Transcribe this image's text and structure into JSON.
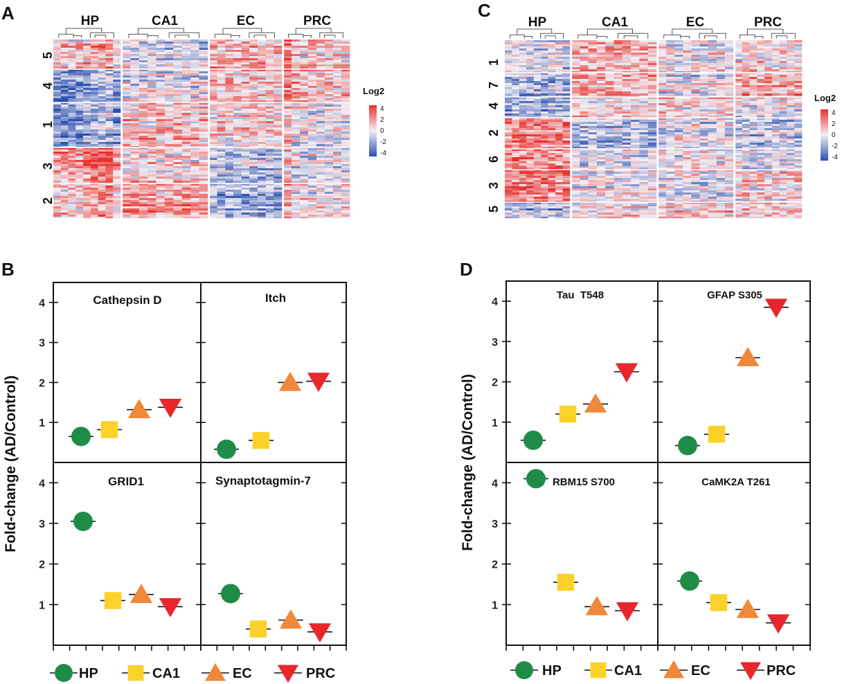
{
  "colors": {
    "HP": "#1e8c46",
    "CA1": "#fcd12a",
    "EC": "#f0883a",
    "PRC": "#e8262d",
    "heat_high": "#e8312d",
    "heat_mid": "#f3eef3",
    "heat_low": "#2a50b0"
  },
  "panels": {
    "A": {
      "letter": "A",
      "regions": [
        "HP",
        "CA1",
        "EC",
        "PRC"
      ],
      "clusters": [
        "5",
        "4",
        "1",
        "3",
        "2"
      ],
      "legend": {
        "title": "Log2",
        "ticks": [
          "4",
          "2",
          "0",
          "-2",
          "-4"
        ]
      }
    },
    "B": {
      "letter": "B"
    },
    "C": {
      "letter": "C",
      "regions": [
        "HP",
        "CA1",
        "EC",
        "PRC"
      ],
      "clusters": [
        "1",
        "7",
        "4",
        "2",
        "6",
        "3",
        "5"
      ],
      "legend": {
        "title": "Log2",
        "ticks": [
          "4",
          "2",
          "0",
          "-2",
          "-4"
        ]
      }
    },
    "D": {
      "letter": "D"
    }
  },
  "ylabel": "Fold-change (AD/Control)",
  "legend": [
    {
      "name": "HP",
      "shape": "circle"
    },
    {
      "name": "CA1",
      "shape": "square"
    },
    {
      "name": "EC",
      "shape": "triangle-up"
    },
    {
      "name": "PRC",
      "shape": "triangle-down"
    }
  ],
  "chart_data": [
    {
      "type": "scatter",
      "panel": "B",
      "title": "Cathepsin D",
      "categories": [
        "HP",
        "CA1",
        "EC",
        "PRC"
      ],
      "values": [
        0.65,
        0.82,
        1.32,
        1.38
      ],
      "ylim": [
        0,
        4.5
      ],
      "yticks": [
        1,
        2,
        3,
        4
      ]
    },
    {
      "type": "scatter",
      "panel": "B",
      "title": "Itch",
      "categories": [
        "HP",
        "CA1",
        "EC",
        "PRC"
      ],
      "values": [
        0.33,
        0.55,
        2.0,
        2.03
      ],
      "ylim": [
        0,
        4.5
      ],
      "yticks": [
        1,
        2,
        3,
        4
      ]
    },
    {
      "type": "scatter",
      "panel": "B",
      "title": "GRID1",
      "categories": [
        "HP",
        "CA1",
        "EC",
        "PRC"
      ],
      "values": [
        3.05,
        1.1,
        1.25,
        0.95
      ],
      "ylim": [
        0,
        4.5
      ],
      "yticks": [
        1,
        2,
        3,
        4
      ]
    },
    {
      "type": "scatter",
      "panel": "B",
      "title": "Synaptotagmin-7",
      "categories": [
        "HP",
        "CA1",
        "EC",
        "PRC"
      ],
      "values": [
        1.27,
        0.4,
        0.62,
        0.33
      ],
      "ylim": [
        0,
        4.5
      ],
      "yticks": [
        1,
        2,
        3,
        4
      ]
    },
    {
      "type": "scatter",
      "panel": "D",
      "title": "Tau  T548",
      "categories": [
        "HP",
        "CA1",
        "EC",
        "PRC"
      ],
      "values": [
        0.55,
        1.2,
        1.45,
        2.25
      ],
      "ylim": [
        0,
        4.5
      ],
      "yticks": [
        1,
        2,
        3,
        4
      ]
    },
    {
      "type": "scatter",
      "panel": "D",
      "title": "GFAP S305",
      "categories": [
        "HP",
        "CA1",
        "EC",
        "PRC"
      ],
      "values": [
        0.42,
        0.7,
        2.6,
        3.85
      ],
      "ylim": [
        0,
        4.5
      ],
      "yticks": [
        1,
        2,
        3,
        4
      ]
    },
    {
      "type": "scatter",
      "panel": "D",
      "title": "RBM15 S700",
      "categories": [
        "HP",
        "CA1",
        "EC",
        "PRC"
      ],
      "values": [
        4.1,
        1.55,
        0.95,
        0.85
      ],
      "ylim": [
        0,
        4.5
      ],
      "yticks": [
        1,
        2,
        3,
        4
      ]
    },
    {
      "type": "scatter",
      "panel": "D",
      "title": "CaMK2A T261",
      "categories": [
        "HP",
        "CA1",
        "EC",
        "PRC"
      ],
      "values": [
        1.58,
        1.05,
        0.88,
        0.55
      ],
      "ylim": [
        0,
        4.5
      ],
      "yticks": [
        1,
        2,
        3,
        4
      ]
    }
  ]
}
